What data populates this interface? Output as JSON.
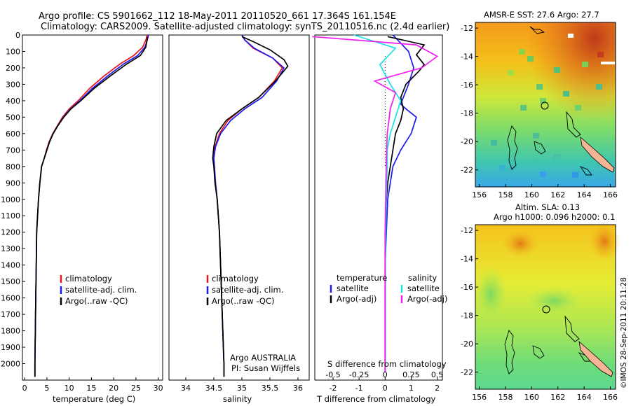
{
  "title": {
    "line1": "Argo profile: CS 5901662_112 18-May-2011 20110520_661 17.364S 161.154E",
    "line2": "Climatology: CARS2009. Satellite-adjusted climatology: synTS_20110516.nc (2.4d earlier)"
  },
  "colors": {
    "climatology": "#e8151b",
    "satellite": "#1a1af0",
    "argo": "#000000",
    "s_satellite": "#19e0e8",
    "s_argo": "#f01ef0"
  },
  "side_label": "©IMOS 28-Sep-2011 20:11:28",
  "credit": {
    "line1": "Argo AUSTRALIA",
    "line2": "PI: Susan Wijffels"
  },
  "chart_data": [
    {
      "type": "line",
      "panel": "temperature",
      "xlabel": "temperature (deg C)",
      "ylabel": "",
      "xlim": [
        -0.5,
        31
      ],
      "ylim": [
        2100,
        0
      ],
      "xticks": [
        0,
        5,
        10,
        15,
        20,
        25,
        30
      ],
      "yticks": [
        0,
        100,
        200,
        300,
        400,
        500,
        600,
        700,
        800,
        900,
        1000,
        1100,
        1200,
        1300,
        1400,
        1500,
        1600,
        1700,
        1800,
        1900,
        2000
      ],
      "legend": [
        "climatology",
        "satellite-adj. clim.",
        "Argo(..raw -QC)"
      ],
      "series": [
        {
          "name": "climatology",
          "color_key": "climatology",
          "x": [
            27.5,
            27.3,
            26.5,
            24.5,
            21.5,
            17.8,
            14.6,
            12.0,
            10.0,
            8.5,
            7.4,
            6.3,
            5.5,
            4.9,
            4.4,
            3.8,
            3.4,
            3.1,
            2.9,
            2.7,
            2.6,
            2.5,
            2.4,
            2.3,
            2.3
          ],
          "y": [
            0,
            25,
            75,
            125,
            175,
            250,
            325,
            400,
            450,
            500,
            550,
            600,
            650,
            700,
            750,
            800,
            900,
            1000,
            1100,
            1200,
            1400,
            1600,
            1800,
            2000,
            2080
          ]
        },
        {
          "name": "satellite-adj. clim.",
          "color_key": "satellite",
          "x": [
            27.8,
            27.6,
            27.0,
            25.4,
            22.3,
            18.6,
            15.2,
            12.4,
            10.3,
            8.7,
            7.5,
            6.4,
            5.6,
            5.0,
            4.4,
            3.8,
            3.4,
            3.1,
            2.9,
            2.7,
            2.6,
            2.5,
            2.4,
            2.3,
            2.3
          ],
          "y": [
            0,
            25,
            75,
            125,
            175,
            250,
            325,
            400,
            450,
            500,
            550,
            600,
            650,
            700,
            750,
            800,
            900,
            1000,
            1100,
            1200,
            1400,
            1600,
            1800,
            2000,
            2080
          ]
        },
        {
          "name": "Argo(..raw -QC)",
          "color_key": "argo",
          "x": [
            27.6,
            27.5,
            27.2,
            26.0,
            23.0,
            19.2,
            15.6,
            12.6,
            10.4,
            8.8,
            7.5,
            6.4,
            5.6,
            5.0,
            4.4,
            3.8,
            3.4,
            3.1,
            2.9,
            2.7,
            2.6,
            2.5,
            2.4,
            2.3,
            2.3
          ],
          "y": [
            10,
            30,
            75,
            125,
            175,
            250,
            325,
            400,
            450,
            500,
            550,
            600,
            650,
            700,
            750,
            800,
            900,
            1000,
            1100,
            1200,
            1400,
            1600,
            1800,
            2000,
            2080
          ]
        }
      ]
    },
    {
      "type": "line",
      "panel": "salinity",
      "xlabel": "salinity",
      "ylabel": "",
      "xlim": [
        33.7,
        36.2
      ],
      "ylim": [
        2100,
        0
      ],
      "xticks": [
        34,
        34.5,
        35,
        35.5,
        36
      ],
      "legend": [
        "climatology",
        "satellite-adj. clim.",
        "Argo(..raw -QC)"
      ],
      "series": [
        {
          "name": "climatology",
          "color_key": "climatology",
          "x": [
            35.0,
            35.05,
            35.2,
            35.55,
            35.72,
            35.58,
            35.3,
            35.0,
            34.75,
            34.6,
            34.52,
            34.5,
            34.51,
            34.53,
            34.56,
            34.6,
            34.62,
            34.64,
            34.66,
            34.67,
            34.68,
            34.68
          ],
          "y": [
            0,
            30,
            80,
            140,
            200,
            280,
            380,
            450,
            520,
            600,
            680,
            750,
            800,
            900,
            1000,
            1200,
            1400,
            1600,
            1800,
            1900,
            2000,
            2080
          ]
        },
        {
          "name": "satellite-adj. clim.",
          "color_key": "satellite",
          "x": [
            35.0,
            35.05,
            35.22,
            35.55,
            35.75,
            35.62,
            35.36,
            35.05,
            34.8,
            34.62,
            34.53,
            34.5,
            34.51,
            34.53,
            34.56,
            34.6,
            34.62,
            34.64,
            34.66,
            34.67,
            34.68,
            34.68
          ],
          "y": [
            0,
            30,
            80,
            140,
            200,
            280,
            380,
            450,
            520,
            600,
            680,
            750,
            800,
            900,
            1000,
            1200,
            1400,
            1600,
            1800,
            1900,
            2000,
            2080
          ]
        },
        {
          "name": "Argo(..raw -QC)",
          "color_key": "argo",
          "x": [
            35.0,
            35.2,
            35.5,
            35.75,
            35.82,
            35.6,
            35.3,
            35.0,
            34.72,
            34.55,
            34.5,
            34.48,
            34.5,
            34.52,
            34.56,
            34.6,
            34.62,
            34.64,
            34.66,
            34.67,
            34.68,
            34.68
          ],
          "y": [
            10,
            40,
            90,
            150,
            190,
            280,
            380,
            450,
            520,
            600,
            680,
            750,
            800,
            900,
            1000,
            1200,
            1400,
            1600,
            1800,
            1900,
            2000,
            2080
          ]
        }
      ]
    },
    {
      "type": "line",
      "panel": "difference",
      "xlabel": "T difference from climatology",
      "ylabel": "",
      "title_bottom": "S difference from climatology",
      "xlim": [
        -2.7,
        2.2
      ],
      "ylim": [
        2100,
        0
      ],
      "xticks": [
        -2,
        -1,
        0,
        1,
        2
      ],
      "s_ticks": [
        -0.5,
        -0.25,
        0,
        0.25,
        0.5
      ],
      "legend_titles": [
        "temperature",
        "salinity"
      ],
      "legend": [
        "satellite",
        "Argo(-adj)",
        "satellite",
        "Argo(-adj)"
      ],
      "series": [
        {
          "name": "satellite",
          "group": "temperature",
          "color_key": "satellite",
          "x": [
            0.3,
            0.6,
            0.9,
            1.1,
            0.9,
            0.7,
            0.6,
            0.8,
            1.2,
            1.0,
            0.6,
            0.3,
            0.2,
            0.1,
            0.05,
            0.0,
            0.0,
            0.0,
            0.0
          ],
          "y": [
            0,
            50,
            100,
            200,
            300,
            380,
            420,
            450,
            500,
            600,
            700,
            800,
            900,
            1000,
            1200,
            1400,
            1600,
            1800,
            2050
          ]
        },
        {
          "name": "Argo(-adj)",
          "group": "temperature",
          "color_key": "argo",
          "x": [
            0.1,
            1.5,
            1.2,
            1.5,
            1.3,
            0.8,
            0.6,
            0.7,
            0.6,
            0.4,
            0.3,
            0.2,
            0.1,
            0.05,
            0.0,
            0.0,
            0.0,
            0.0
          ],
          "y": [
            10,
            60,
            120,
            180,
            220,
            300,
            380,
            450,
            520,
            600,
            700,
            800,
            900,
            1000,
            1200,
            1500,
            1800,
            2050
          ]
        },
        {
          "name": "satellite",
          "group": "salinity",
          "color_key": "s_satellite",
          "x": [
            -0.3,
            0.1,
            -0.05,
            0.05,
            0.15,
            0.1,
            0.05,
            0.02,
            0.02,
            0.01,
            0.0,
            0.0
          ],
          "y": [
            0,
            80,
            180,
            300,
            400,
            500,
            600,
            700,
            800,
            1000,
            1500,
            2050
          ]
        },
        {
          "name": "Argo(-adj)",
          "group": "salinity",
          "color_key": "s_argo",
          "x": [
            -0.7,
            0.3,
            0.5,
            0.35,
            -0.1,
            0.1,
            0.05,
            0.02,
            0.01,
            0.0,
            0.0
          ],
          "y": [
            10,
            60,
            130,
            200,
            280,
            350,
            450,
            600,
            800,
            1200,
            2050
          ]
        }
      ]
    },
    {
      "type": "heatmap",
      "panel": "sst_map",
      "title": "AMSR-E SST: 27.6 Argo: 27.7",
      "xticks": [
        156,
        158,
        160,
        162,
        164,
        166
      ],
      "yticks": [
        -12,
        -14,
        -16,
        -18,
        -20,
        -22
      ],
      "xlim": [
        155.7,
        166.4
      ],
      "ylim": [
        -23.2,
        -11.6
      ],
      "argo_position": [
        161.15,
        -17.36
      ]
    },
    {
      "type": "heatmap",
      "panel": "sla_map",
      "title": "Altim. SLA: 0.13",
      "subtitle": "Argo h1000: 0.096 h2000: 0.1",
      "xticks": [
        156,
        158,
        160,
        162,
        164,
        166
      ],
      "yticks": [
        -12,
        -14,
        -16,
        -18,
        -20,
        -22
      ],
      "xlim": [
        155.7,
        166.4
      ],
      "ylim": [
        -23.2,
        -11.6
      ],
      "argo_position": [
        161.15,
        -17.36
      ]
    }
  ]
}
